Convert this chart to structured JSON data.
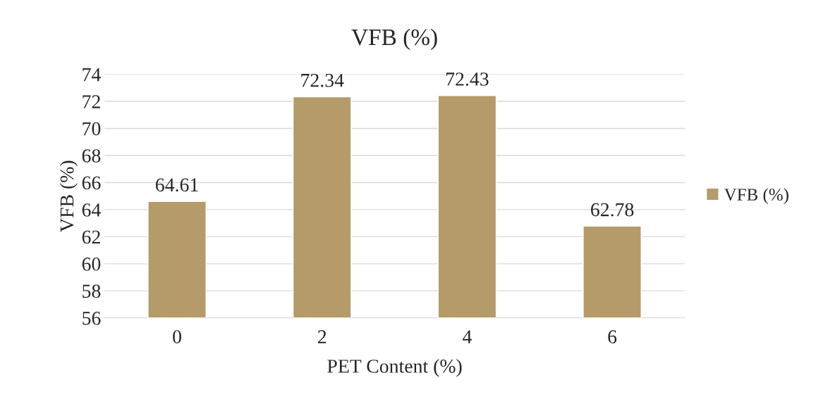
{
  "chart_data": {
    "type": "bar",
    "title": "VFB (%)",
    "xlabel": "PET Content (%)",
    "ylabel": "VFB (%)",
    "categories": [
      "0",
      "2",
      "4",
      "6"
    ],
    "series": [
      {
        "name": "VFB (%)",
        "color": "#b59a6a",
        "values": [
          64.61,
          72.34,
          72.43,
          62.78
        ]
      }
    ],
    "ylim": [
      56,
      74
    ],
    "yticks": [
      56,
      58,
      60,
      62,
      64,
      66,
      68,
      70,
      72,
      74
    ],
    "grid": "y",
    "legend": "right",
    "data_labels": true
  }
}
